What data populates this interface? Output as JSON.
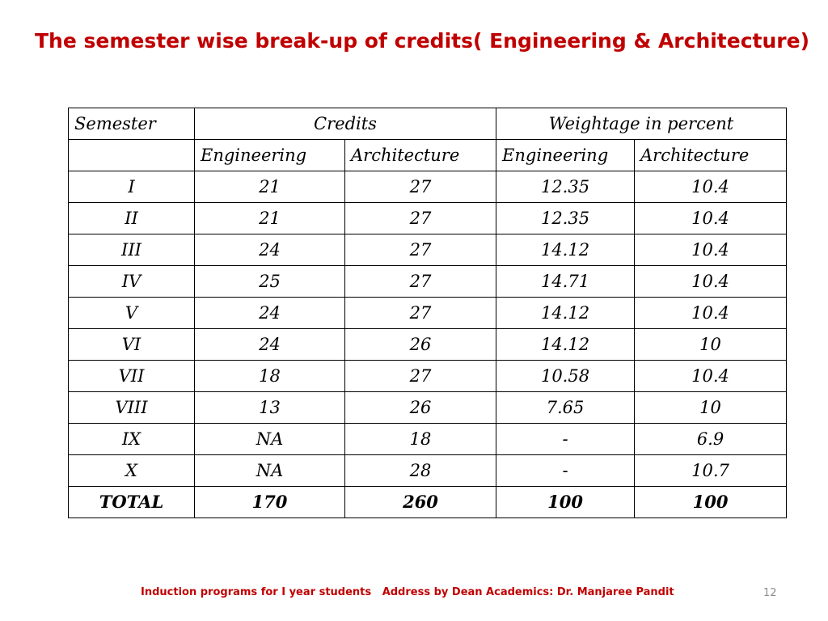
{
  "slide": {
    "title": "The semester wise break-up of credits( Engineering & Architecture)",
    "footer": "Induction programs for I year students   Address by Dean Academics: Dr. Manjaree Pandit",
    "page_number": "12"
  },
  "table": {
    "header": {
      "semester": "Semester",
      "credits": "Credits",
      "weightage": "Weightage in percent",
      "sub": [
        "Engineering",
        "Architecture",
        "Engineering",
        "Architecture"
      ]
    },
    "rows": [
      [
        "I",
        "21",
        "27",
        "12.35",
        "10.4"
      ],
      [
        "II",
        "21",
        "27",
        "12.35",
        "10.4"
      ],
      [
        "III",
        "24",
        "27",
        "14.12",
        "10.4"
      ],
      [
        "IV",
        "25",
        "27",
        "14.71",
        "10.4"
      ],
      [
        "V",
        "24",
        "27",
        "14.12",
        "10.4"
      ],
      [
        "VI",
        "24",
        "26",
        "14.12",
        "10"
      ],
      [
        "VII",
        "18",
        "27",
        "10.58",
        "10.4"
      ],
      [
        "VIII",
        "13",
        "26",
        "7.65",
        "10"
      ],
      [
        "IX",
        "NA",
        "18",
        "-",
        "6.9"
      ],
      [
        "X",
        "NA",
        "28",
        "-",
        "10.7"
      ]
    ],
    "total": [
      "TOTAL",
      "170",
      "260",
      "100",
      "100"
    ]
  }
}
